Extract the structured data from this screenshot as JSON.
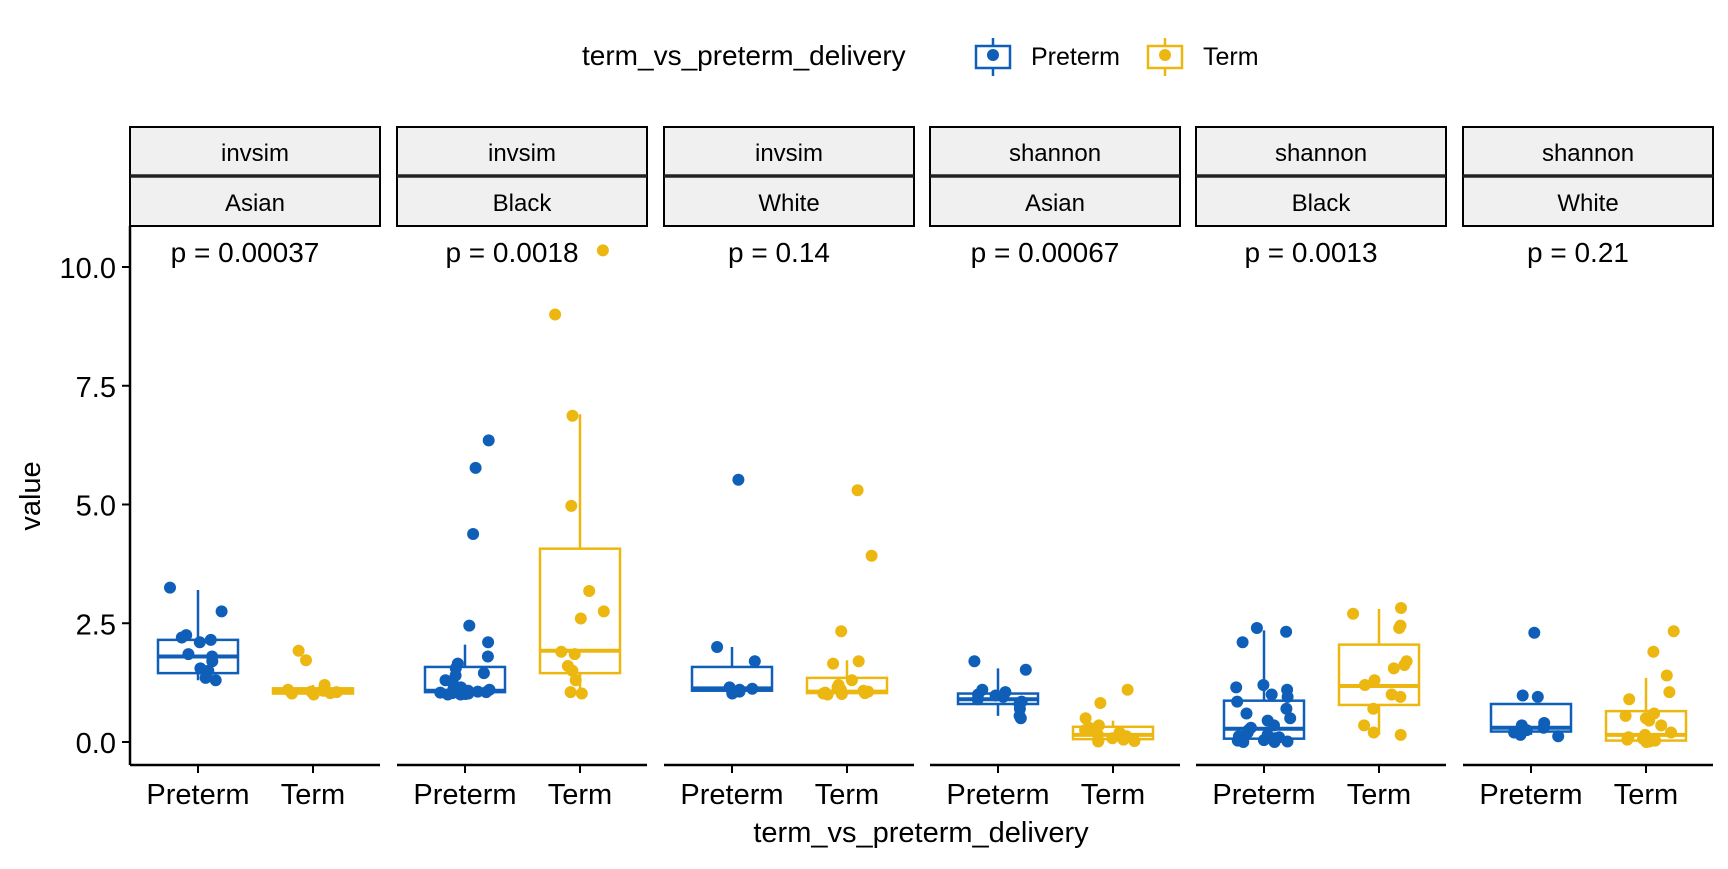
{
  "chart_data": {
    "type": "box",
    "legend": {
      "title": "term_vs_preterm_delivery",
      "position": "top",
      "entries": [
        {
          "name": "Preterm",
          "color": "#0F5FB9"
        },
        {
          "name": "Term",
          "color": "#EDB711"
        }
      ]
    },
    "xlabel": "term_vs_preterm_delivery",
    "ylabel": "value",
    "ylim": [
      -0.5,
      10.8
    ],
    "y_ticks": [
      0.0,
      2.5,
      5.0,
      7.5,
      10.0
    ],
    "y_tick_labels": [
      "0.0",
      "2.5",
      "5.0",
      "7.5",
      "10.0"
    ],
    "categories": [
      "Preterm",
      "Term"
    ],
    "grid": false,
    "panels": [
      {
        "strip_top": "invsim",
        "strip_bottom": "Asian",
        "p_label": "p = 0.00037",
        "groups": [
          {
            "name": "Preterm",
            "q1": 1.45,
            "median": 1.8,
            "q3": 2.15,
            "whisker_low": 1.3,
            "whisker_high": 3.2,
            "points": [
              3.25,
              2.75,
              2.25,
              2.2,
              2.15,
              2.1,
              1.85,
              1.8,
              1.7,
              1.55,
              1.5,
              1.35,
              1.3
            ]
          },
          {
            "name": "Term",
            "q1": 1.02,
            "median": 1.07,
            "q3": 1.13,
            "whisker_low": 1.0,
            "whisker_high": 1.2,
            "points": [
              1.92,
              1.72,
              1.2,
              1.12,
              1.1,
              1.08,
              1.06,
              1.05,
              1.03,
              1.02,
              1.0
            ]
          }
        ]
      },
      {
        "strip_top": "invsim",
        "strip_bottom": "Black",
        "p_label": "p = 0.0018",
        "groups": [
          {
            "name": "Preterm",
            "q1": 1.05,
            "median": 1.08,
            "q3": 1.58,
            "whisker_low": 1.0,
            "whisker_high": 2.05,
            "points": [
              6.35,
              5.77,
              4.38,
              2.45,
              2.1,
              1.8,
              1.65,
              1.55,
              1.45,
              1.4,
              1.3,
              1.2,
              1.15,
              1.12,
              1.1,
              1.08,
              1.06,
              1.05,
              1.04,
              1.03,
              1.02,
              1.01,
              1.0,
              1.0
            ]
          },
          {
            "name": "Term",
            "q1": 1.45,
            "median": 1.92,
            "q3": 4.07,
            "whisker_low": 1.0,
            "whisker_high": 6.9,
            "points": [
              10.35,
              9.0,
              6.87,
              4.97,
              3.18,
              2.75,
              2.6,
              1.9,
              1.85,
              1.6,
              1.5,
              1.3,
              1.05,
              1.02
            ]
          }
        ]
      },
      {
        "strip_top": "invsim",
        "strip_bottom": "White",
        "p_label": "p = 0.14",
        "groups": [
          {
            "name": "Preterm",
            "q1": 1.08,
            "median": 1.13,
            "q3": 1.58,
            "whisker_low": 1.02,
            "whisker_high": 2.0,
            "points": [
              5.52,
              2.0,
              1.7,
              1.15,
              1.12,
              1.1,
              1.06,
              1.04,
              1.02
            ]
          },
          {
            "name": "Term",
            "q1": 1.03,
            "median": 1.06,
            "q3": 1.35,
            "whisker_low": 1.0,
            "whisker_high": 1.72,
            "points": [
              5.3,
              3.92,
              2.33,
              1.7,
              1.65,
              1.3,
              1.2,
              1.15,
              1.1,
              1.08,
              1.06,
              1.04,
              1.03,
              1.02,
              1.01,
              1.0
            ]
          }
        ]
      },
      {
        "strip_top": "shannon",
        "strip_bottom": "Asian",
        "p_label": "p = 0.00067",
        "groups": [
          {
            "name": "Preterm",
            "q1": 0.8,
            "median": 0.9,
            "q3": 1.02,
            "whisker_low": 0.55,
            "whisker_high": 1.55,
            "points": [
              1.7,
              1.52,
              1.1,
              1.05,
              1.0,
              0.98,
              0.95,
              0.9,
              0.85,
              0.8,
              0.7,
              0.55,
              0.5
            ]
          },
          {
            "name": "Term",
            "q1": 0.06,
            "median": 0.15,
            "q3": 0.32,
            "whisker_low": 0.0,
            "whisker_high": 0.45,
            "points": [
              1.1,
              0.82,
              0.5,
              0.35,
              0.3,
              0.25,
              0.2,
              0.15,
              0.12,
              0.08,
              0.05,
              0.03,
              0.02,
              0.01
            ]
          }
        ]
      },
      {
        "strip_top": "shannon",
        "strip_bottom": "Black",
        "p_label": "p = 0.0013",
        "groups": [
          {
            "name": "Preterm",
            "q1": 0.07,
            "median": 0.28,
            "q3": 0.87,
            "whisker_low": 0.0,
            "whisker_high": 2.35,
            "points": [
              2.4,
              2.32,
              2.1,
              1.2,
              1.15,
              1.1,
              1.0,
              0.95,
              0.85,
              0.7,
              0.6,
              0.5,
              0.45,
              0.35,
              0.3,
              0.25,
              0.2,
              0.15,
              0.12,
              0.1,
              0.08,
              0.06,
              0.04,
              0.03,
              0.02,
              0.01,
              0.0,
              0.0
            ]
          },
          {
            "name": "Term",
            "q1": 0.78,
            "median": 1.18,
            "q3": 2.05,
            "whisker_low": 0.15,
            "whisker_high": 2.8,
            "points": [
              2.82,
              2.7,
              2.45,
              2.4,
              1.7,
              1.62,
              1.55,
              1.3,
              1.2,
              1.0,
              0.95,
              0.7,
              0.35,
              0.2,
              0.15
            ]
          }
        ]
      },
      {
        "strip_top": "shannon",
        "strip_bottom": "White",
        "p_label": "p = 0.21",
        "groups": [
          {
            "name": "Preterm",
            "q1": 0.22,
            "median": 0.3,
            "q3": 0.8,
            "whisker_low": 0.15,
            "whisker_high": 0.8,
            "points": [
              2.3,
              0.98,
              0.95,
              0.4,
              0.35,
              0.3,
              0.25,
              0.2,
              0.15,
              0.12
            ]
          },
          {
            "name": "Term",
            "q1": 0.03,
            "median": 0.15,
            "q3": 0.65,
            "whisker_low": 0.0,
            "whisker_high": 1.35,
            "points": [
              2.33,
              1.9,
              1.4,
              1.05,
              0.9,
              0.6,
              0.55,
              0.5,
              0.45,
              0.35,
              0.2,
              0.15,
              0.1,
              0.07,
              0.05,
              0.03,
              0.02,
              0.01,
              0.0
            ]
          }
        ]
      }
    ]
  }
}
